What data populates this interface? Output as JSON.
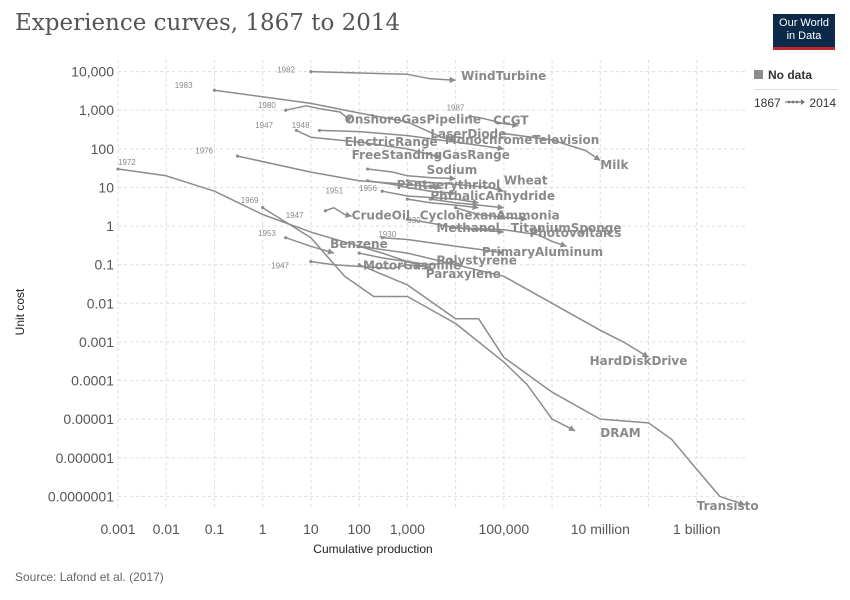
{
  "header": {
    "title": "Experience curves, 1867 to 2014",
    "logo_line1": "Our World",
    "logo_line2": "in Data"
  },
  "legend": {
    "no_data": "No data",
    "time_start": "1867",
    "time_end": "2014"
  },
  "footer": {
    "source": "Source: Lafond et al. (2017)"
  },
  "colors": {
    "line": "#8c8c8c",
    "grid": "#dddddd",
    "text": "#555555"
  },
  "chart_data": {
    "type": "line",
    "title": "Experience curves, 1867 to 2014",
    "xlabel": "Cumulative production",
    "ylabel": "Unit cost",
    "xscale": "log",
    "yscale": "log",
    "xlim": [
      0.001,
      10000000000
    ],
    "ylim": [
      5e-08,
      20000
    ],
    "grid": true,
    "x_ticks": [
      {
        "v": 0.001,
        "label": "0.001"
      },
      {
        "v": 0.01,
        "label": "0.01"
      },
      {
        "v": 0.1,
        "label": "0.1"
      },
      {
        "v": 1,
        "label": "1"
      },
      {
        "v": 10,
        "label": "10"
      },
      {
        "v": 100,
        "label": "100"
      },
      {
        "v": 1000,
        "label": "1,000"
      },
      {
        "v": 100000,
        "label": "100,000"
      },
      {
        "v": 10000000,
        "label": "10 million"
      },
      {
        "v": 1000000000,
        "label": "1 billion"
      }
    ],
    "x_grid": [
      0.001,
      0.01,
      0.1,
      1,
      10,
      100,
      1000,
      10000,
      100000,
      1000000,
      10000000,
      100000000,
      1000000000
    ],
    "y_ticks": [
      {
        "v": 10000,
        "label": "10,000"
      },
      {
        "v": 1000,
        "label": "1,000"
      },
      {
        "v": 100,
        "label": "100"
      },
      {
        "v": 10,
        "label": "10"
      },
      {
        "v": 1,
        "label": "1"
      },
      {
        "v": 0.1,
        "label": "0.1"
      },
      {
        "v": 0.01,
        "label": "0.01"
      },
      {
        "v": 0.001,
        "label": "0.001"
      },
      {
        "v": 0.0001,
        "label": "0.0001"
      },
      {
        "v": 1e-05,
        "label": "0.00001"
      },
      {
        "v": 1e-06,
        "label": "0.000001"
      },
      {
        "v": 1e-07,
        "label": "0.0000001"
      }
    ],
    "series": [
      {
        "name": "WindTurbine",
        "start_year": "1982",
        "points": [
          [
            10,
            10000
          ],
          [
            100,
            9200
          ],
          [
            1000,
            8500
          ],
          [
            3000,
            6500
          ],
          [
            10000,
            6000
          ]
        ]
      },
      {
        "name": "OnshoreGasPipeline",
        "start_year": "1980",
        "points": [
          [
            3,
            1000
          ],
          [
            8,
            1300
          ],
          [
            15,
            1100
          ],
          [
            40,
            900
          ],
          [
            60,
            600
          ],
          [
            70,
            700
          ]
        ]
      },
      {
        "name": "CCGT",
        "start_year": "1987",
        "points": [
          [
            20000,
            700
          ],
          [
            40000,
            600
          ],
          [
            100000,
            450
          ],
          [
            200000,
            400
          ]
        ]
      },
      {
        "name": "LaserDiode",
        "start_year": "1983",
        "points": [
          [
            0.1,
            3300
          ],
          [
            10,
            1500
          ],
          [
            100,
            850
          ],
          [
            1000,
            500
          ],
          [
            5000,
            200
          ],
          [
            10000,
            160
          ]
        ]
      },
      {
        "name": "MonochromeTelevision",
        "start_year": "1948",
        "points": [
          [
            15,
            300
          ],
          [
            100,
            280
          ],
          [
            1000,
            220
          ],
          [
            10000,
            150
          ],
          [
            100000,
            100
          ]
        ]
      },
      {
        "name": "ElectricRange",
        "start_year": "1947",
        "points": [
          [
            5,
            300
          ],
          [
            10,
            200
          ],
          [
            100,
            150
          ],
          [
            1000,
            100
          ],
          [
            5000,
            60
          ]
        ]
      },
      {
        "name": "FreeStandingGasRange",
        "start_year": "1976",
        "points": [
          [
            0.3,
            65
          ],
          [
            10,
            25
          ],
          [
            100,
            15
          ],
          [
            1000,
            12
          ],
          [
            5000,
            10
          ]
        ]
      },
      {
        "name": "Milk",
        "points": [
          [
            100000,
            250
          ],
          [
            1000000,
            170
          ],
          [
            5000000,
            90
          ],
          [
            10000000,
            50
          ]
        ]
      },
      {
        "name": "Sodium",
        "points": [
          [
            150,
            30
          ],
          [
            500,
            25
          ],
          [
            1000,
            20
          ],
          [
            3000,
            18
          ],
          [
            10000,
            17
          ]
        ]
      },
      {
        "name": "Wheat",
        "points": [
          [
            1000,
            15
          ],
          [
            10000,
            12
          ],
          [
            50000,
            10
          ],
          [
            100000,
            8
          ]
        ]
      },
      {
        "name": "Pentaerythritol",
        "points": [
          [
            150,
            15
          ],
          [
            500,
            12
          ],
          [
            1000,
            10
          ],
          [
            3000,
            8
          ],
          [
            10000,
            7
          ]
        ]
      },
      {
        "name": "PhthalicAnhydride",
        "start_year": "1956",
        "points": [
          [
            300,
            8
          ],
          [
            1000,
            6
          ],
          [
            10000,
            5
          ],
          [
            30000,
            4
          ]
        ]
      },
      {
        "name": "Cyclohexane",
        "points": [
          [
            1000,
            5
          ],
          [
            3000,
            4
          ],
          [
            10000,
            3.5
          ],
          [
            30000,
            3
          ]
        ]
      },
      {
        "name": "Ammonia",
        "points": [
          [
            3000,
            5
          ],
          [
            10000,
            4
          ],
          [
            30000,
            3.5
          ],
          [
            100000,
            3
          ]
        ]
      },
      {
        "name": "TitaniumSponge",
        "points": [
          [
            10000,
            3
          ],
          [
            30000,
            2
          ],
          [
            100000,
            1.7
          ],
          [
            300000,
            1.5
          ]
        ]
      },
      {
        "name": "Methanol",
        "start_year": "1930",
        "points": [
          [
            1000,
            1.5
          ],
          [
            3000,
            1.2
          ],
          [
            10000,
            0.9
          ],
          [
            30000,
            0.8
          ],
          [
            100000,
            0.7
          ]
        ]
      },
      {
        "name": "Photovoltaics",
        "points": [
          [
            10000,
            0.9
          ],
          [
            100000,
            0.8
          ],
          [
            500000,
            0.6
          ],
          [
            1000000,
            0.4
          ],
          [
            2000000,
            0.3
          ]
        ]
      },
      {
        "name": "CrudeOil",
        "start_year": "1947",
        "points": [
          [
            20,
            2.5
          ],
          [
            30,
            3
          ],
          [
            50,
            2
          ],
          [
            70,
            1.8
          ]
        ]
      },
      {
        "name": "PrimaryAluminum",
        "start_year": "1930",
        "points": [
          [
            300,
            0.5
          ],
          [
            1000,
            0.45
          ],
          [
            10000,
            0.3
          ],
          [
            30000,
            0.25
          ],
          [
            100000,
            0.2
          ]
        ]
      },
      {
        "name": "Benzene",
        "start_year": "1953",
        "points": [
          [
            3,
            0.5
          ],
          [
            10,
            0.3
          ],
          [
            30,
            0.2
          ]
        ]
      },
      {
        "name": "Polystyrene",
        "points": [
          [
            100,
            0.2
          ],
          [
            300,
            0.15
          ],
          [
            1000,
            0.12
          ],
          [
            3000,
            0.1
          ],
          [
            10000,
            0.12
          ]
        ]
      },
      {
        "name": "MotorGasoline",
        "start_year": "1947",
        "points": [
          [
            10,
            0.12
          ],
          [
            30,
            0.1
          ],
          [
            100,
            0.09
          ],
          [
            500,
            0.08
          ],
          [
            1000,
            0.1
          ],
          [
            2000,
            0.09
          ]
        ]
      },
      {
        "name": "Paraxylene",
        "points": [
          [
            100,
            0.3
          ],
          [
            300,
            0.2
          ],
          [
            1000,
            0.12
          ],
          [
            3000,
            0.08
          ]
        ]
      },
      {
        "name": "HardDiskDrive",
        "start_year": "1972",
        "points": [
          [
            0.001,
            30
          ],
          [
            0.01,
            20
          ],
          [
            0.1,
            8
          ],
          [
            1,
            2
          ],
          [
            10,
            0.7
          ],
          [
            100,
            0.3
          ],
          [
            1000,
            0.2
          ],
          [
            10000,
            0.1
          ],
          [
            100000,
            0.05
          ],
          [
            1000000,
            0.01
          ],
          [
            10000000,
            0.002
          ],
          [
            30000000,
            0.001
          ],
          [
            100000000,
            0.0004
          ]
        ]
      },
      {
        "name": "DRAM",
        "start_year": "1969",
        "points": [
          [
            1,
            3
          ],
          [
            10,
            0.5
          ],
          [
            50,
            0.05
          ],
          [
            200,
            0.015
          ],
          [
            1000,
            0.015
          ],
          [
            10000,
            0.003
          ],
          [
            100000,
            0.0003
          ],
          [
            300000,
            8e-05
          ],
          [
            1000000,
            1e-05
          ],
          [
            3000000,
            5e-06
          ]
        ]
      },
      {
        "name": "Transistor",
        "points": [
          [
            100,
            0.1
          ],
          [
            1000,
            0.03
          ],
          [
            10000,
            0.004
          ],
          [
            30000,
            0.004
          ],
          [
            100000,
            0.0004
          ],
          [
            1000000,
            5e-05
          ],
          [
            10000000,
            1e-05
          ],
          [
            100000000,
            8e-06
          ],
          [
            300000000,
            3e-06
          ],
          [
            1000000000,
            5e-07
          ],
          [
            3000000000,
            1e-07
          ],
          [
            10000000000,
            6e-08
          ]
        ]
      }
    ],
    "labels": [
      {
        "text": "WindTurbine",
        "x": 13000,
        "y": 6000
      },
      {
        "text": "OnshoreGasPipeline",
        "x": 50,
        "y": 460
      },
      {
        "text": "CCGT",
        "x": 60000,
        "y": 430
      },
      {
        "text": "LaserDiode",
        "x": 3000,
        "y": 190
      },
      {
        "text": "MonochromeTelevision",
        "x": 6000,
        "y": 135
      },
      {
        "text": "ElectricRange",
        "x": 50,
        "y": 120
      },
      {
        "text": "FreeStandingGasRange",
        "x": 70,
        "y": 55
      },
      {
        "text": "Milk",
        "x": 10000000,
        "y": 30
      },
      {
        "text": "Sodium",
        "x": 2500,
        "y": 22
      },
      {
        "text": "Wheat",
        "x": 100000,
        "y": 12
      },
      {
        "text": "Pentaerythritol",
        "x": 600,
        "y": 9
      },
      {
        "text": "PhthalicAnhydride",
        "x": 3000,
        "y": 4.8
      },
      {
        "text": "CrudeOil",
        "x": 70,
        "y": 1.5
      },
      {
        "text": "Cyclohexane",
        "x": 1800,
        "y": 1.5
      },
      {
        "text": "Ammonia",
        "x": 70000,
        "y": 1.5
      },
      {
        "text": "Methanol",
        "x": 4000,
        "y": 0.7
      },
      {
        "text": "TitaniumSponge",
        "x": 140000,
        "y": 0.7
      },
      {
        "text": "Photovoltaics",
        "x": 340000,
        "y": 0.52
      },
      {
        "text": "Benzene",
        "x": 25,
        "y": 0.27
      },
      {
        "text": "PrimaryAluminum",
        "x": 35000,
        "y": 0.17
      },
      {
        "text": "Polystyrene",
        "x": 4000,
        "y": 0.1
      },
      {
        "text": "MotorGasoline",
        "x": 120,
        "y": 0.075
      },
      {
        "text": "Paraxylene",
        "x": 2400,
        "y": 0.045
      },
      {
        "text": "HardDiskDrive",
        "x": 6000000,
        "y": 0.00025
      },
      {
        "text": "DRAM",
        "x": 10000000,
        "y": 3.5e-06
      },
      {
        "text": "Transisto",
        "x": 1000000000,
        "y": 4.5e-08
      }
    ],
    "start_labels": [
      {
        "text": "1982",
        "x": 2,
        "y": 9500
      },
      {
        "text": "1983",
        "x": 0.015,
        "y": 3800
      },
      {
        "text": "1980",
        "x": 0.8,
        "y": 1150
      },
      {
        "text": "1987",
        "x": 6500,
        "y": 980
      },
      {
        "text": "1947",
        "x": 0.7,
        "y": 350
      },
      {
        "text": "1948",
        "x": 4,
        "y": 350
      },
      {
        "text": "1976",
        "x": 0.04,
        "y": 75
      },
      {
        "text": "1972",
        "x": 0.001,
        "y": 38
      },
      {
        "text": "1951",
        "x": 20,
        "y": 7
      },
      {
        "text": "1956",
        "x": 100,
        "y": 8
      },
      {
        "text": "1969",
        "x": 0.35,
        "y": 4
      },
      {
        "text": "1947",
        "x": 3,
        "y": 1.6
      },
      {
        "text": "930",
        "x": 1000,
        "y": 1.2
      },
      {
        "text": "1930",
        "x": 250,
        "y": 0.52
      },
      {
        "text": "1953",
        "x": 0.8,
        "y": 0.55
      },
      {
        "text": "1947",
        "x": 1.5,
        "y": 0.08
      }
    ]
  }
}
